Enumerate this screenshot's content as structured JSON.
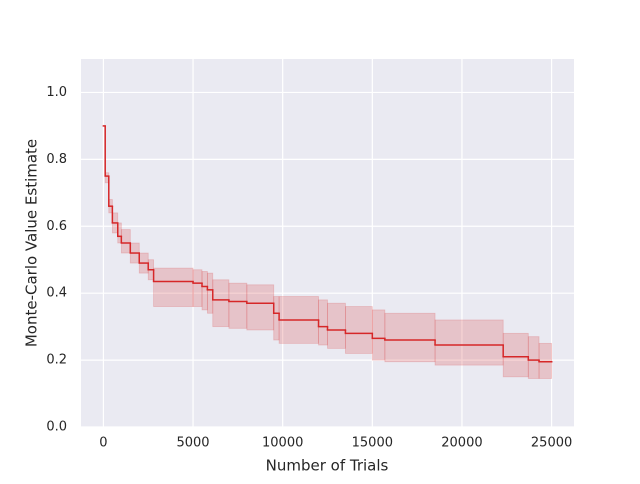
{
  "chart_data": {
    "type": "step-band",
    "xlabel": "Number of Trials",
    "ylabel": "Monte-Carlo Value Estimate",
    "x": [
      0,
      100,
      300,
      500,
      800,
      1000,
      1500,
      2000,
      2500,
      2800,
      5000,
      5500,
      5800,
      6100,
      7000,
      8000,
      9500,
      9800,
      12000,
      12500,
      13500,
      15000,
      15700,
      18500,
      22300,
      23700,
      24300,
      25000
    ],
    "series": [
      {
        "color": "#d62728",
        "values": [
          0.9,
          0.75,
          0.66,
          0.61,
          0.57,
          0.55,
          0.52,
          0.49,
          0.47,
          0.435,
          0.43,
          0.42,
          0.41,
          0.38,
          0.375,
          0.37,
          0.34,
          0.32,
          0.3,
          0.29,
          0.28,
          0.265,
          0.26,
          0.245,
          0.21,
          0.2,
          0.195,
          0.195
        ],
        "upper": [
          0.9,
          0.76,
          0.68,
          0.64,
          0.61,
          0.59,
          0.55,
          0.52,
          0.5,
          0.475,
          0.47,
          0.465,
          0.46,
          0.44,
          0.43,
          0.425,
          0.39,
          0.39,
          0.38,
          0.37,
          0.36,
          0.35,
          0.34,
          0.32,
          0.28,
          0.27,
          0.25,
          0.25
        ],
        "lower": [
          0.9,
          0.73,
          0.64,
          0.58,
          0.55,
          0.52,
          0.49,
          0.46,
          0.44,
          0.36,
          0.36,
          0.35,
          0.34,
          0.3,
          0.295,
          0.29,
          0.26,
          0.25,
          0.245,
          0.235,
          0.22,
          0.2,
          0.195,
          0.185,
          0.15,
          0.145,
          0.145,
          0.145
        ]
      }
    ],
    "xlim": [
      -1250,
      26250
    ],
    "ylim": [
      0,
      1.1
    ],
    "xticks": [
      0,
      5000,
      10000,
      15000,
      20000,
      25000
    ],
    "yticks": [
      {
        "value": 0,
        "label": "0.0"
      },
      0.2,
      0.4,
      0.6,
      0.8,
      {
        "value": 1,
        "label": "1.0"
      }
    ],
    "grid": true,
    "background": "#eaeaf2"
  }
}
